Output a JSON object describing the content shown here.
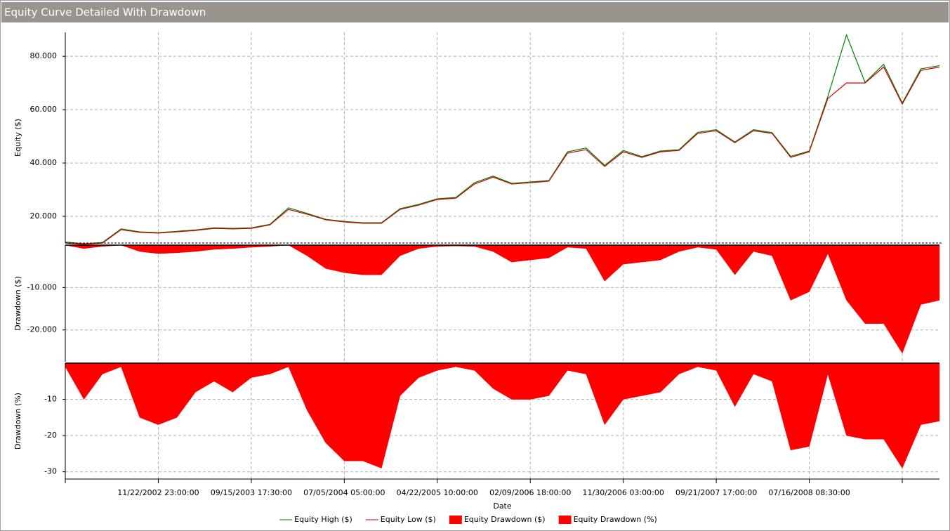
{
  "title": "Equity Curve Detailed With Drawdown",
  "chart_data": [
    {
      "type": "line",
      "ylabel": "Equity ($)",
      "ylim": [
        10000,
        89000
      ],
      "yticks": [
        {
          "value": 20000,
          "label": "20.000"
        },
        {
          "value": 40000,
          "label": "40.000"
        },
        {
          "value": 60000,
          "label": "60.000"
        },
        {
          "value": 80000,
          "label": "80.000"
        }
      ],
      "grid": true,
      "series": [
        {
          "name": "Equity High ($)",
          "color": "#008000",
          "values": [
            10400,
            9700,
            10200,
            15300,
            14200,
            13900,
            14400,
            14900,
            15700,
            15500,
            15700,
            17000,
            23200,
            21100,
            18900,
            18100,
            17600,
            17600,
            22900,
            24500,
            26600,
            27100,
            32600,
            35100,
            32400,
            32900,
            33400,
            44200,
            45600,
            39100,
            44700,
            42400,
            44500,
            45000,
            51500,
            52500,
            47900,
            52500,
            51400,
            42500,
            44500,
            65000,
            88000,
            70200,
            77000,
            62500,
            75300,
            76500
          ]
        },
        {
          "name": "Equity Low ($)",
          "color": "#cc0000",
          "values": [
            10000,
            9500,
            10000,
            15000,
            14000,
            13700,
            14200,
            14700,
            15500,
            15300,
            15500,
            16800,
            22600,
            20800,
            18700,
            17900,
            17400,
            17400,
            22600,
            24200,
            26300,
            26800,
            32100,
            34700,
            32100,
            32600,
            33200,
            43700,
            45000,
            38700,
            44200,
            42100,
            44200,
            44700,
            51100,
            52100,
            47600,
            52100,
            51100,
            42100,
            44200,
            64200,
            70000,
            70000,
            76000,
            62100,
            74700,
            76000
          ]
        }
      ]
    },
    {
      "type": "area",
      "ylabel": "Drawdown ($)",
      "ylim": [
        -27500,
        0
      ],
      "yticks": [
        {
          "value": -20000,
          "label": "-20.000"
        },
        {
          "value": -10000,
          "label": "-10.000"
        }
      ],
      "grid": true,
      "series": [
        {
          "name": "Equity Drawdown ($)",
          "color": "#ff0000",
          "values": [
            0,
            -800,
            -300,
            0,
            -1500,
            -2000,
            -1800,
            -1500,
            -1000,
            -800,
            -500,
            -300,
            0,
            -2500,
            -5500,
            -6500,
            -7000,
            -7000,
            -2500,
            -800,
            -300,
            -200,
            -300,
            -1500,
            -4000,
            -3500,
            -3000,
            -500,
            -800,
            -8500,
            -4500,
            -4000,
            -3500,
            -1500,
            -500,
            -1000,
            -7000,
            -1500,
            -2500,
            -13000,
            -11000,
            -2000,
            -13000,
            -18500,
            -18500,
            -25500,
            -14000,
            -13000
          ]
        }
      ]
    },
    {
      "type": "area",
      "ylabel": "Drawdown (%)",
      "xlabel": "Date",
      "ylim": [
        -32,
        0
      ],
      "yticks": [
        -30,
        -20,
        -10
      ],
      "grid": true,
      "categories": [
        null,
        null,
        null,
        null,
        null,
        "11/22/2002 23:00:00",
        null,
        null,
        null,
        null,
        "09/15/2003 17:30:00",
        null,
        null,
        null,
        null,
        "07/05/2004 05:00:00",
        null,
        null,
        null,
        null,
        "04/22/2005 10:00:00",
        null,
        null,
        null,
        null,
        "02/09/2006 18:00:00",
        null,
        null,
        null,
        null,
        "11/30/2006 03:00:00",
        null,
        null,
        null,
        null,
        "09/21/2007 17:00:00",
        null,
        null,
        null,
        null,
        "07/16/2008 08:30:00",
        null,
        null,
        null,
        null,
        null,
        null,
        null
      ],
      "series": [
        {
          "name": "Equity Drawdown (%)",
          "color": "#ff0000",
          "values": [
            -1,
            -10,
            -3,
            -1,
            -15,
            -17,
            -15,
            -8,
            -5,
            -8,
            -4,
            -3,
            -1,
            -13,
            -22,
            -27,
            -27,
            -29,
            -9,
            -4,
            -2,
            -1,
            -2,
            -7,
            -10,
            -10,
            -9,
            -2,
            -3,
            -17,
            -10,
            -9,
            -8,
            -3,
            -1,
            -2,
            -12,
            -3,
            -5,
            -24,
            -23,
            -3,
            -20,
            -21,
            -21,
            -29,
            -17,
            -16
          ]
        }
      ]
    }
  ]
}
